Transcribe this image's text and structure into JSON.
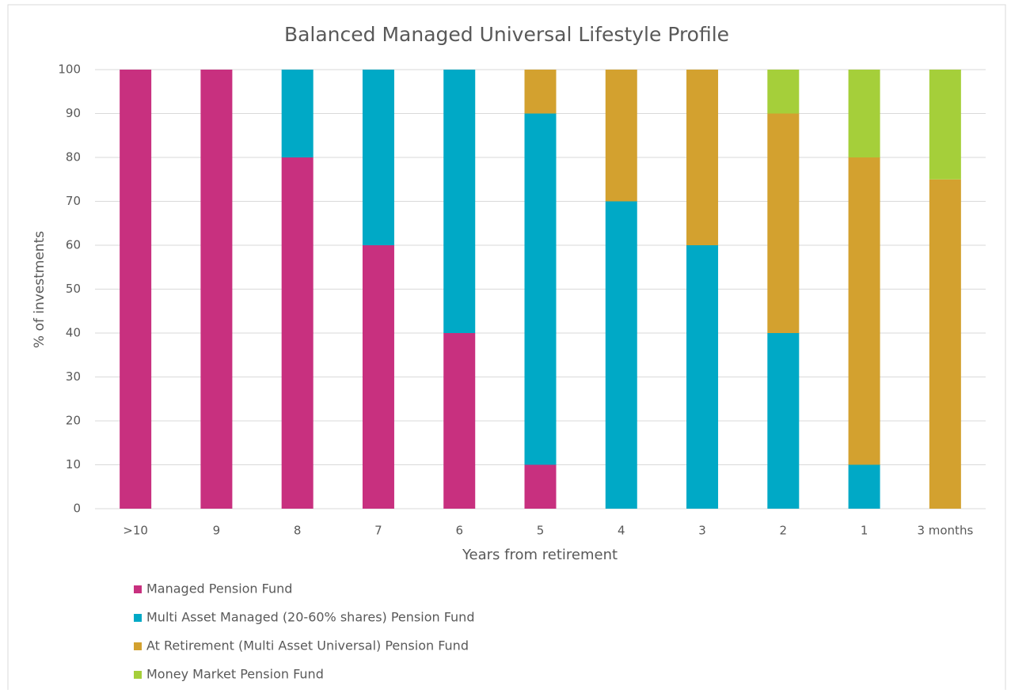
{
  "chart_data": {
    "type": "bar",
    "stacked": true,
    "title": "Balanced Managed Universal Lifestyle Profile",
    "x_label": "Years from retirement",
    "y_label": "% of investments",
    "categories": [
      ">10",
      "9",
      "8",
      "7",
      "6",
      "5",
      "4",
      "3",
      "2",
      "1",
      "3 months"
    ],
    "series": [
      {
        "name": "Managed Pension Fund",
        "color": "#c8307f",
        "values": [
          100,
          100,
          80,
          60,
          40,
          10,
          0,
          0,
          0,
          0,
          0
        ]
      },
      {
        "name": "Multi Asset Managed (20-60% shares) Pension Fund",
        "color": "#00a9c6",
        "values": [
          0,
          0,
          20,
          40,
          60,
          80,
          70,
          60,
          40,
          10,
          0
        ]
      },
      {
        "name": "At Retirement (Multi Asset Universal) Pension Fund",
        "color": "#d3a12f",
        "values": [
          0,
          0,
          0,
          0,
          0,
          10,
          30,
          40,
          50,
          70,
          75
        ]
      },
      {
        "name": "Money Market Pension Fund",
        "color": "#a5cf3a",
        "values": [
          0,
          0,
          0,
          0,
          0,
          0,
          0,
          0,
          10,
          20,
          25
        ]
      }
    ],
    "ylim": [
      0,
      100
    ],
    "yticks": [
      0,
      10,
      20,
      30,
      40,
      50,
      60,
      70,
      80,
      90,
      100
    ],
    "grid": true,
    "legend": "bottom-left"
  }
}
